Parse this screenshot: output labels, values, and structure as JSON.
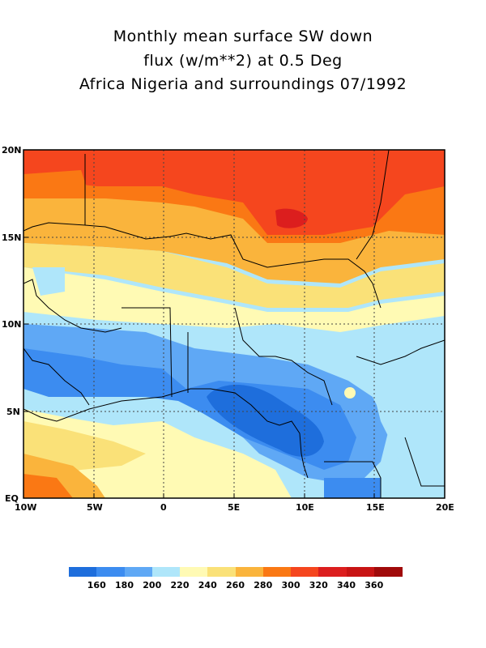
{
  "title": {
    "line1": "Monthly mean surface SW down",
    "line2": "flux (w/m**2) at 0.5 Deg",
    "line3": "Africa Nigeria and surroundings 07/1992"
  },
  "axes": {
    "y_ticks": [
      "20N",
      "15N",
      "10N",
      "5N",
      "EQ"
    ],
    "x_ticks": [
      "10W",
      "5W",
      "0",
      "5E",
      "10E",
      "15E",
      "20E"
    ]
  },
  "legend": {
    "labels": [
      "160",
      "180",
      "200",
      "220",
      "240",
      "260",
      "280",
      "300",
      "320",
      "340",
      "360"
    ],
    "colors": [
      "#1e6edc",
      "#3c8cf0",
      "#5fa8f5",
      "#afe6fa",
      "#fffab4",
      "#fae178",
      "#fab43c",
      "#fa7814",
      "#f5461e",
      "#dc1e1e",
      "#c81414",
      "#a00a0a"
    ]
  },
  "colors": {
    "frame": "#000000",
    "grid": "#444444",
    "coast": "#000000"
  }
}
